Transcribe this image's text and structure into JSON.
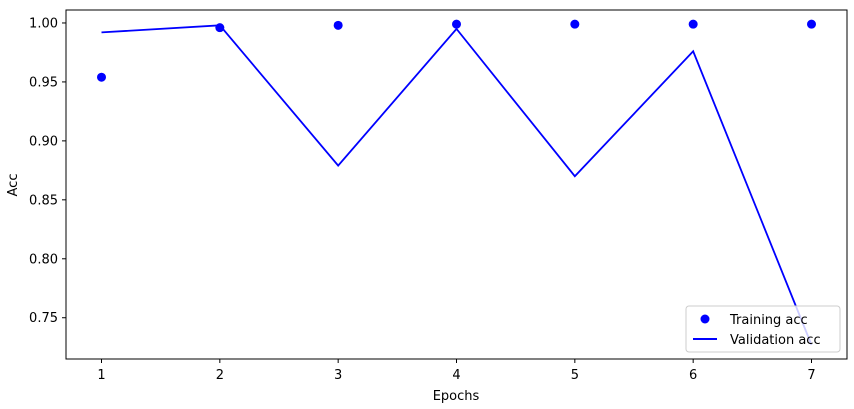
{
  "chart_data": {
    "type": "line",
    "x": [
      1,
      2,
      3,
      4,
      5,
      6,
      7
    ],
    "series": [
      {
        "name": "Training acc",
        "style": "markers",
        "color": "#0000ff",
        "values": [
          0.954,
          0.996,
          0.998,
          0.999,
          0.999,
          0.999,
          0.999
        ]
      },
      {
        "name": "Validation acc",
        "style": "line",
        "color": "#0000ff",
        "values": [
          0.992,
          0.998,
          0.879,
          0.995,
          0.87,
          0.976,
          0.727
        ]
      }
    ],
    "xlabel": "Epochs",
    "ylabel": "Acc",
    "xlim": [
      0.7,
      7.3
    ],
    "ylim": [
      0.715,
      1.011
    ],
    "xticks": [
      "1",
      "2",
      "3",
      "4",
      "5",
      "6",
      "7"
    ],
    "yticks": [
      "0.75",
      "0.80",
      "0.85",
      "0.90",
      "0.95",
      "1.00"
    ],
    "grid": false,
    "legend_position": "bottom-right"
  }
}
